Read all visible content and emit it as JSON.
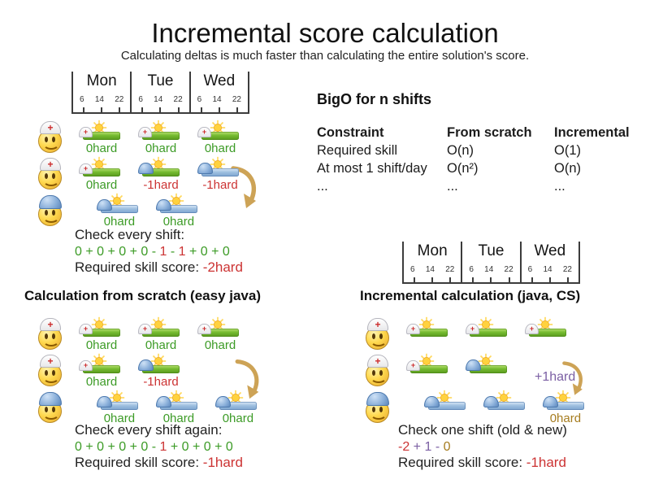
{
  "title": "Incremental score calculation",
  "subtitle": "Calculating deltas is much faster than calculating the entire solution's score.",
  "colors": {
    "green": "#3c9b26",
    "red": "#cc3333",
    "purple": "#7b5fa3",
    "gold": "#a67c1f",
    "arrow": "#cda356",
    "green_bar": "#76bb31",
    "blue_bar": "#9cbede"
  },
  "timeline": {
    "days": [
      "Mon",
      "Tue",
      "Wed"
    ],
    "hours": [
      "6",
      "14",
      "22"
    ]
  },
  "bigo": {
    "title": "BigO for n shifts",
    "columns": [
      "Constraint",
      "From scratch",
      "Incremental"
    ],
    "rows": [
      [
        "Required skill",
        "O(n)",
        "O(1)"
      ],
      [
        "At most 1 shift/day",
        "O(n²)",
        "O(n)"
      ],
      [
        "...",
        "...",
        "..."
      ]
    ]
  },
  "panels": [
    {
      "title": "",
      "caption": "Check every shift:",
      "equation": [
        {
          "t": "0 + 0 + 0 + 0 - ",
          "c": "green"
        },
        {
          "t": "1",
          "c": "red"
        },
        {
          "t": " - ",
          "c": "green"
        },
        {
          "t": "1",
          "c": "red"
        },
        {
          "t": " + 0 + 0",
          "c": "green"
        }
      ],
      "score_label": "Required skill score: ",
      "score_value": "-2hard",
      "rows": [
        {
          "employee": "nurse",
          "shifts": [
            {
              "slot": 0,
              "bar": "green",
              "hat": "nurse",
              "label": "0hard",
              "color": "green"
            },
            {
              "slot": 2,
              "bar": "green",
              "hat": "nurse",
              "label": "0hard",
              "color": "green"
            },
            {
              "slot": 4,
              "bar": "green",
              "hat": "nurse",
              "label": "0hard",
              "color": "green"
            }
          ]
        },
        {
          "employee": "nurse",
          "shifts": [
            {
              "slot": 0,
              "bar": "green",
              "hat": "nurse",
              "label": "0hard",
              "color": "green"
            },
            {
              "slot": 2,
              "bar": "green",
              "hat": "builder",
              "label": "-1hard",
              "color": "red"
            },
            {
              "slot": 4,
              "bar": "blue",
              "hat": "builder",
              "label": "-1hard",
              "color": "red"
            }
          ]
        },
        {
          "employee": "builder",
          "shifts": [
            {
              "slot": 0.6,
              "bar": "blue",
              "hat": "builder",
              "label": "0hard",
              "color": "green"
            },
            {
              "slot": 2.6,
              "bar": "blue",
              "hat": "builder",
              "label": "0hard",
              "color": "green"
            }
          ]
        }
      ]
    },
    {
      "title": "Calculation from scratch (easy java)",
      "caption": "Check every shift again:",
      "equation": [
        {
          "t": "0 + 0 + 0 + 0 - ",
          "c": "green"
        },
        {
          "t": "1",
          "c": "red"
        },
        {
          "t": " + 0 + 0 + 0",
          "c": "green"
        }
      ],
      "score_label": "Required skill score: ",
      "score_value": "-1hard",
      "rows": [
        {
          "employee": "nurse",
          "shifts": [
            {
              "slot": 0,
              "bar": "green",
              "hat": "nurse",
              "label": "0hard",
              "color": "green"
            },
            {
              "slot": 2,
              "bar": "green",
              "hat": "nurse",
              "label": "0hard",
              "color": "green"
            },
            {
              "slot": 4,
              "bar": "green",
              "hat": "nurse",
              "label": "0hard",
              "color": "green"
            }
          ]
        },
        {
          "employee": "nurse",
          "shifts": [
            {
              "slot": 0,
              "bar": "green",
              "hat": "nurse",
              "label": "0hard",
              "color": "green"
            },
            {
              "slot": 2,
              "bar": "green",
              "hat": "builder",
              "label": "-1hard",
              "color": "red"
            }
          ]
        },
        {
          "employee": "builder",
          "shifts": [
            {
              "slot": 0.6,
              "bar": "blue",
              "hat": "builder",
              "label": "0hard",
              "color": "green"
            },
            {
              "slot": 2.6,
              "bar": "blue",
              "hat": "builder",
              "label": "0hard",
              "color": "green"
            },
            {
              "slot": 4.6,
              "bar": "blue",
              "hat": "builder",
              "label": "0hard",
              "color": "green"
            }
          ]
        }
      ]
    },
    {
      "title": "Incremental calculation (java, CS)",
      "caption": "Check one shift (old & new)",
      "delta_label": "+1hard",
      "equation": [
        {
          "t": "-2",
          "c": "red"
        },
        {
          "t": " + ",
          "c": "purple"
        },
        {
          "t": "1",
          "c": "purple"
        },
        {
          "t": " - ",
          "c": "purple"
        },
        {
          "t": "0",
          "c": "gold"
        }
      ],
      "score_label": "Required skill score: ",
      "score_value": "-1hard",
      "rows": [
        {
          "employee": "nurse",
          "shifts": [
            {
              "slot": 0,
              "bar": "green",
              "hat": "nurse"
            },
            {
              "slot": 2,
              "bar": "green",
              "hat": "nurse"
            },
            {
              "slot": 4,
              "bar": "green",
              "hat": "nurse"
            }
          ]
        },
        {
          "employee": "nurse",
          "shifts": [
            {
              "slot": 0,
              "bar": "green",
              "hat": "nurse"
            },
            {
              "slot": 2,
              "bar": "green",
              "hat": "builder"
            }
          ]
        },
        {
          "employee": "builder",
          "shifts": [
            {
              "slot": 0.6,
              "bar": "blue",
              "hat": "builder"
            },
            {
              "slot": 2.6,
              "bar": "blue",
              "hat": "builder"
            },
            {
              "slot": 4.6,
              "bar": "blue",
              "hat": "builder",
              "label": "0hard",
              "color": "gold"
            }
          ]
        }
      ]
    }
  ]
}
